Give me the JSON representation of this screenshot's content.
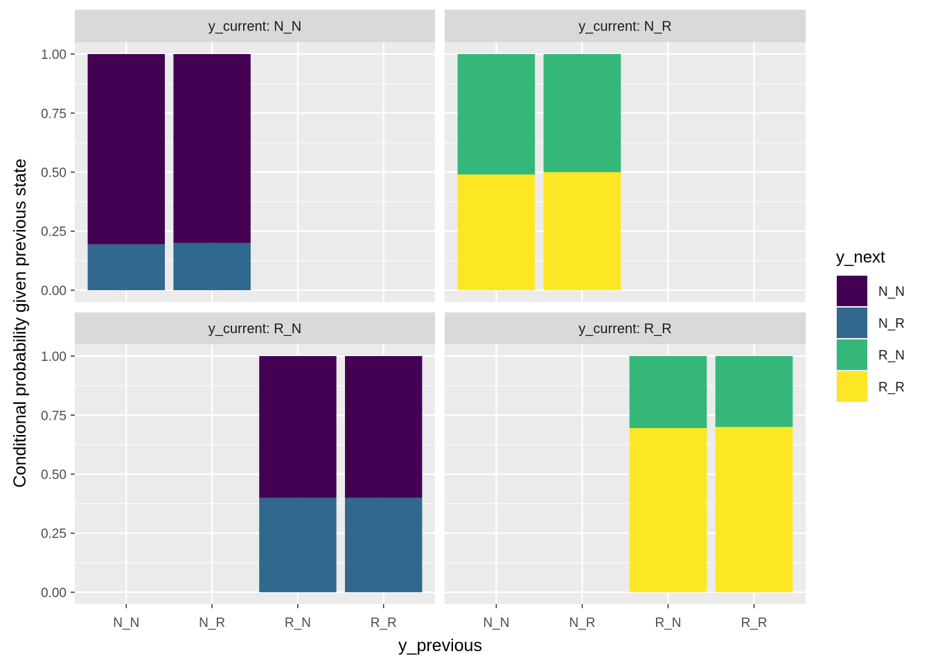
{
  "chart_data": {
    "type": "bar",
    "stacked": true,
    "faceted": true,
    "xlabel": "y_previous",
    "ylabel": "Conditional probability given previous state",
    "ylim": [
      0,
      1
    ],
    "y_ticks": [
      "0.00",
      "0.25",
      "0.50",
      "0.75",
      "1.00"
    ],
    "y_tick_values": [
      0,
      0.25,
      0.5,
      0.75,
      1
    ],
    "categories": [
      "N_N",
      "N_R",
      "R_N",
      "R_R"
    ],
    "legend": {
      "title": "y_next",
      "entries": [
        {
          "label": "N_N",
          "color": "#440154"
        },
        {
          "label": "N_R",
          "color": "#31688E"
        },
        {
          "label": "R_N",
          "color": "#35B779"
        },
        {
          "label": "R_R",
          "color": "#FDE725"
        }
      ]
    },
    "facets": [
      {
        "label": "y_current: N_N",
        "bars": [
          {
            "category": "N_N",
            "stack": [
              {
                "series": "N_R",
                "value": 0.195
              },
              {
                "series": "N_N",
                "value": 0.805
              }
            ]
          },
          {
            "category": "N_R",
            "stack": [
              {
                "series": "N_R",
                "value": 0.2
              },
              {
                "series": "N_N",
                "value": 0.8
              }
            ]
          }
        ]
      },
      {
        "label": "y_current: N_R",
        "bars": [
          {
            "category": "N_N",
            "stack": [
              {
                "series": "R_R",
                "value": 0.49
              },
              {
                "series": "R_N",
                "value": 0.51
              }
            ]
          },
          {
            "category": "N_R",
            "stack": [
              {
                "series": "R_R",
                "value": 0.5
              },
              {
                "series": "R_N",
                "value": 0.5
              }
            ]
          }
        ]
      },
      {
        "label": "y_current: R_N",
        "bars": [
          {
            "category": "R_N",
            "stack": [
              {
                "series": "N_R",
                "value": 0.4
              },
              {
                "series": "N_N",
                "value": 0.6
              }
            ]
          },
          {
            "category": "R_R",
            "stack": [
              {
                "series": "N_R",
                "value": 0.4
              },
              {
                "series": "N_N",
                "value": 0.6
              }
            ]
          }
        ]
      },
      {
        "label": "y_current: R_R",
        "bars": [
          {
            "category": "R_N",
            "stack": [
              {
                "series": "R_R",
                "value": 0.695
              },
              {
                "series": "R_N",
                "value": 0.305
              }
            ]
          },
          {
            "category": "R_R",
            "stack": [
              {
                "series": "R_R",
                "value": 0.7
              },
              {
                "series": "R_N",
                "value": 0.3
              }
            ]
          }
        ]
      }
    ]
  }
}
